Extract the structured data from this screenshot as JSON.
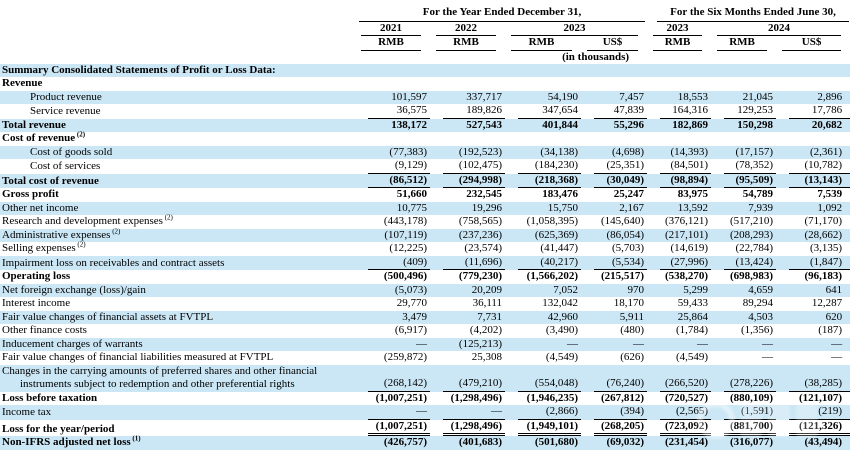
{
  "header": {
    "annual_group": "For the Year Ended December 31,",
    "interim_group": "For the Six Months Ended June 30,",
    "years": [
      "2021",
      "2022",
      "2023",
      "2023",
      "2024"
    ],
    "currencies": [
      "RMB",
      "RMB",
      "RMB",
      "US$",
      "RMB",
      "RMB",
      "US$"
    ],
    "units_note": "(in thousands)"
  },
  "table": {
    "rows": [
      {
        "label": "Summary Consolidated Statements of Profit or Loss Data:",
        "bold": true,
        "shade": true
      },
      {
        "label": "Revenue",
        "bold": true
      },
      {
        "label": "Product revenue",
        "indent": true,
        "shade": true,
        "values": [
          "101,597",
          "337,717",
          "54,190",
          "7,457",
          "18,553",
          "21,045",
          "2,896"
        ]
      },
      {
        "label": "Service revenue",
        "indent": true,
        "rule": true,
        "values": [
          "36,575",
          "189,826",
          "347,654",
          "47,839",
          "164,316",
          "129,253",
          "17,786"
        ]
      },
      {
        "label": "Total revenue",
        "bold": true,
        "shade": true,
        "values": [
          "138,172",
          "527,543",
          "401,844",
          "55,296",
          "182,869",
          "150,298",
          "20,682"
        ]
      },
      {
        "label": "Cost of revenue",
        "sup": "(2)",
        "bold": true
      },
      {
        "label": "Cost of goods sold",
        "indent": true,
        "shade": true,
        "values": [
          "(77,383)",
          "(192,523)",
          "(34,138)",
          "(4,698)",
          "(14,393)",
          "(17,157)",
          "(2,361)"
        ]
      },
      {
        "label": "Cost of services",
        "indent": true,
        "rule": true,
        "values": [
          "(9,129)",
          "(102,475)",
          "(184,230)",
          "(25,351)",
          "(84,501)",
          "(78,352)",
          "(10,782)"
        ]
      },
      {
        "label": "Total cost of revenue",
        "bold": true,
        "shade": true,
        "rule": true,
        "values": [
          "(86,512)",
          "(294,998)",
          "(218,368)",
          "(30,049)",
          "(98,894)",
          "(95,509)",
          "(13,143)"
        ]
      },
      {
        "label": "Gross profit",
        "bold": true,
        "values": [
          "51,660",
          "232,545",
          "183,476",
          "25,247",
          "83,975",
          "54,789",
          "7,539"
        ]
      },
      {
        "label": "Other net income",
        "shade": true,
        "values": [
          "10,775",
          "19,296",
          "15,750",
          "2,167",
          "13,592",
          "7,939",
          "1,092"
        ]
      },
      {
        "label": "Research and development expenses",
        "sup": "(2)",
        "values": [
          "(443,178)",
          "(758,565)",
          "(1,058,395)",
          "(145,640)",
          "(376,121)",
          "(517,210)",
          "(71,170)"
        ]
      },
      {
        "label": "Administrative expenses",
        "sup": "(2)",
        "shade": true,
        "values": [
          "(107,119)",
          "(237,236)",
          "(625,369)",
          "(86,054)",
          "(217,101)",
          "(208,293)",
          "(28,662)"
        ]
      },
      {
        "label": "Selling expenses",
        "sup": "(2)",
        "values": [
          "(12,225)",
          "(23,574)",
          "(41,447)",
          "(5,703)",
          "(14,619)",
          "(22,784)",
          "(3,135)"
        ]
      },
      {
        "label": "Impairment loss on receivables and contract assets",
        "shade": true,
        "rule": true,
        "values": [
          "(409)",
          "(11,696)",
          "(40,217)",
          "(5,534)",
          "(27,996)",
          "(13,424)",
          "(1,847)"
        ]
      },
      {
        "label": "Operating loss",
        "bold": true,
        "values": [
          "(500,496)",
          "(779,230)",
          "(1,566,202)",
          "(215,517)",
          "(538,270)",
          "(698,983)",
          "(96,183)"
        ]
      },
      {
        "label": "Net foreign exchange (loss)/gain",
        "shade": true,
        "values": [
          "(5,073)",
          "20,209",
          "7,052",
          "970",
          "5,299",
          "4,659",
          "641"
        ]
      },
      {
        "label": "Interest income",
        "values": [
          "29,770",
          "36,111",
          "132,042",
          "18,170",
          "59,433",
          "89,294",
          "12,287"
        ]
      },
      {
        "label": "Fair value changes of financial assets at FVTPL",
        "shade": true,
        "values": [
          "3,479",
          "7,731",
          "42,960",
          "5,911",
          "25,864",
          "4,503",
          "620"
        ]
      },
      {
        "label": "Other finance costs",
        "values": [
          "(6,917)",
          "(4,202)",
          "(3,490)",
          "(480)",
          "(1,784)",
          "(1,356)",
          "(187)"
        ]
      },
      {
        "label": "Inducement charges of warrants",
        "shade": true,
        "values": [
          "—",
          "(125,213)",
          "—",
          "—",
          "—",
          "—",
          "—"
        ]
      },
      {
        "label": "Fair value changes of financial liabilities measured at FVTPL",
        "values": [
          "(259,872)",
          "25,308",
          "(4,549)",
          "(626)",
          "(4,549)",
          "—",
          "—"
        ]
      },
      {
        "label": "Changes in the carrying amounts of preferred shares and other financial",
        "label2": "instruments subject to redemption and other preferential rights",
        "shade": true,
        "rule": true,
        "values": [
          "(268,142)",
          "(479,210)",
          "(554,048)",
          "(76,240)",
          "(266,520)",
          "(278,226)",
          "(38,285)"
        ]
      },
      {
        "label": "Loss before taxation",
        "bold": true,
        "values": [
          "(1,007,251)",
          "(1,298,496)",
          "(1,946,235)",
          "(267,812)",
          "(720,527)",
          "(880,109)",
          "(121,107)"
        ]
      },
      {
        "label": "Income tax",
        "shade": true,
        "rule": true,
        "values": [
          "—",
          "—",
          "(2,866)",
          "(394)",
          "(2,565)",
          "(1,591)",
          "(219)"
        ]
      },
      {
        "label": "Loss for the year/period",
        "bold": true,
        "dbl": true,
        "values": [
          "(1,007,251)",
          "(1,298,496)",
          "(1,949,101)",
          "(268,205)",
          "(723,092)",
          "(881,700)",
          "(121,326)"
        ]
      },
      {
        "label": "Non-IFRS adjusted net loss",
        "sup": "(1)",
        "bold": true,
        "shade": true,
        "values": [
          "(426,757)",
          "(401,683)",
          "(501,680)",
          "(69,032)",
          "(231,454)",
          "(316,077)",
          "(43,494)"
        ]
      }
    ]
  }
}
